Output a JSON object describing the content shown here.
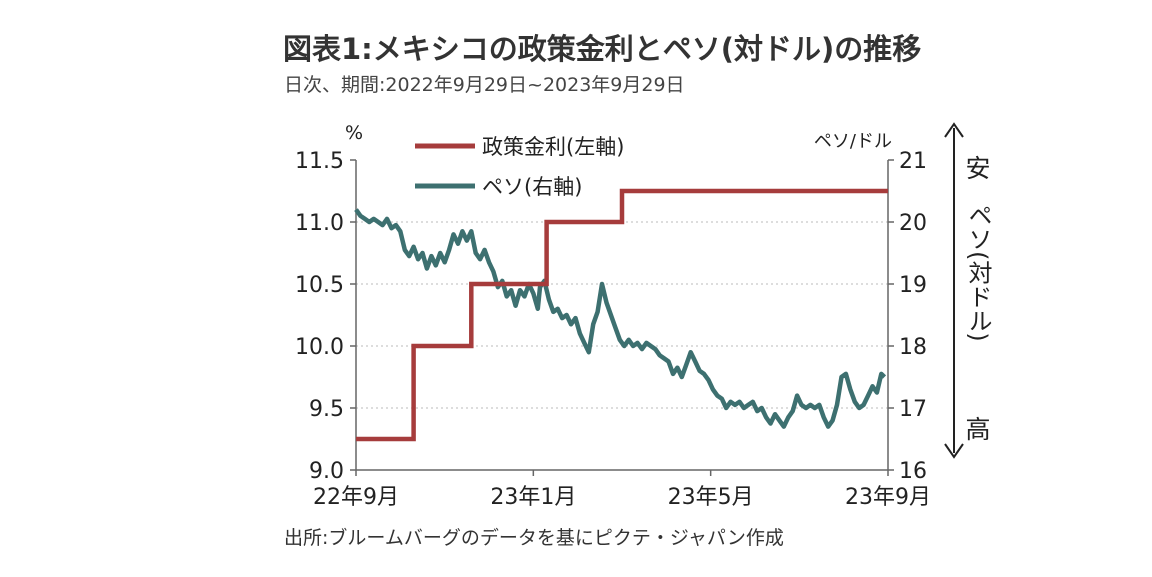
{
  "title": "図表1:メキシコの政策金利とペソ(対ドル)の推移",
  "subtitle": "日次、期間:2022年9月29日~2023年9月29日",
  "source": "出所:ブルームバーグのデータを基にピクテ・ジャパン作成",
  "chart_data": {
    "type": "line",
    "y_left_unit": "%",
    "y_right_unit": "ペソ/ドル",
    "ylim_left": [
      9.0,
      11.5
    ],
    "ylim_right": [
      16,
      21
    ],
    "left_ticks": [
      "11.5",
      "11.0",
      "10.5",
      "10.0",
      "9.5",
      "9.0"
    ],
    "right_ticks": [
      "21",
      "20",
      "19",
      "18",
      "17",
      "16"
    ],
    "x_ticks": [
      {
        "label": "22年9月",
        "month": 0
      },
      {
        "label": "23年1月",
        "month": 4
      },
      {
        "label": "23年5月",
        "month": 8
      },
      {
        "label": "23年9月",
        "month": 12
      }
    ],
    "xlim_months": [
      0,
      12
    ],
    "right_annotation": {
      "top": "安",
      "middle": "ペソ(対ドル)",
      "bottom": "高"
    },
    "colors": {
      "policy_rate": "#a63c3c",
      "peso": "#3d7070"
    },
    "series": [
      {
        "name": "政策金利(左軸)",
        "axis": "left",
        "step": true,
        "points": [
          [
            0,
            9.25
          ],
          [
            1.3,
            9.25
          ],
          [
            1.3,
            10.0
          ],
          [
            2.6,
            10.0
          ],
          [
            2.6,
            10.5
          ],
          [
            4.3,
            10.5
          ],
          [
            4.3,
            11.0
          ],
          [
            6.0,
            11.0
          ],
          [
            6.0,
            11.25
          ],
          [
            12,
            11.25
          ]
        ]
      },
      {
        "name": "ペソ(右軸)",
        "axis": "right",
        "points": [
          [
            0.0,
            20.2
          ],
          [
            0.1,
            20.1
          ],
          [
            0.2,
            20.05
          ],
          [
            0.3,
            20.0
          ],
          [
            0.4,
            20.05
          ],
          [
            0.5,
            20.0
          ],
          [
            0.6,
            19.95
          ],
          [
            0.7,
            20.05
          ],
          [
            0.8,
            19.9
          ],
          [
            0.9,
            19.95
          ],
          [
            1.0,
            19.85
          ],
          [
            1.1,
            19.55
          ],
          [
            1.2,
            19.45
          ],
          [
            1.3,
            19.6
          ],
          [
            1.4,
            19.4
          ],
          [
            1.5,
            19.5
          ],
          [
            1.6,
            19.25
          ],
          [
            1.7,
            19.45
          ],
          [
            1.8,
            19.3
          ],
          [
            1.9,
            19.5
          ],
          [
            2.0,
            19.35
          ],
          [
            2.1,
            19.55
          ],
          [
            2.2,
            19.8
          ],
          [
            2.3,
            19.65
          ],
          [
            2.4,
            19.85
          ],
          [
            2.5,
            19.7
          ],
          [
            2.6,
            19.85
          ],
          [
            2.7,
            19.5
          ],
          [
            2.8,
            19.4
          ],
          [
            2.9,
            19.55
          ],
          [
            3.0,
            19.35
          ],
          [
            3.1,
            19.2
          ],
          [
            3.2,
            18.95
          ],
          [
            3.3,
            19.05
          ],
          [
            3.4,
            18.8
          ],
          [
            3.5,
            18.9
          ],
          [
            3.6,
            18.65
          ],
          [
            3.7,
            18.9
          ],
          [
            3.8,
            18.8
          ],
          [
            3.9,
            19.0
          ],
          [
            4.0,
            18.85
          ],
          [
            4.1,
            18.6
          ],
          [
            4.15,
            18.95
          ],
          [
            4.25,
            19.05
          ],
          [
            4.35,
            18.75
          ],
          [
            4.45,
            18.55
          ],
          [
            4.55,
            18.6
          ],
          [
            4.65,
            18.45
          ],
          [
            4.75,
            18.5
          ],
          [
            4.85,
            18.35
          ],
          [
            4.95,
            18.45
          ],
          [
            5.05,
            18.2
          ],
          [
            5.15,
            18.05
          ],
          [
            5.25,
            17.9
          ],
          [
            5.35,
            18.35
          ],
          [
            5.45,
            18.55
          ],
          [
            5.55,
            19.0
          ],
          [
            5.65,
            18.7
          ],
          [
            5.75,
            18.5
          ],
          [
            5.85,
            18.3
          ],
          [
            5.95,
            18.1
          ],
          [
            6.05,
            18.0
          ],
          [
            6.15,
            18.1
          ],
          [
            6.25,
            18.0
          ],
          [
            6.35,
            18.05
          ],
          [
            6.45,
            17.95
          ],
          [
            6.55,
            18.05
          ],
          [
            6.65,
            18.0
          ],
          [
            6.75,
            17.95
          ],
          [
            6.85,
            17.85
          ],
          [
            6.95,
            17.8
          ],
          [
            7.05,
            17.75
          ],
          [
            7.15,
            17.55
          ],
          [
            7.25,
            17.65
          ],
          [
            7.35,
            17.5
          ],
          [
            7.45,
            17.7
          ],
          [
            7.55,
            17.9
          ],
          [
            7.65,
            17.75
          ],
          [
            7.75,
            17.6
          ],
          [
            7.85,
            17.55
          ],
          [
            7.95,
            17.45
          ],
          [
            8.05,
            17.3
          ],
          [
            8.15,
            17.2
          ],
          [
            8.25,
            17.15
          ],
          [
            8.35,
            17.0
          ],
          [
            8.45,
            17.1
          ],
          [
            8.55,
            17.05
          ],
          [
            8.65,
            17.1
          ],
          [
            8.75,
            17.0
          ],
          [
            8.85,
            17.05
          ],
          [
            8.95,
            17.1
          ],
          [
            9.05,
            16.95
          ],
          [
            9.15,
            17.0
          ],
          [
            9.25,
            16.85
          ],
          [
            9.35,
            16.75
          ],
          [
            9.45,
            16.9
          ],
          [
            9.55,
            16.8
          ],
          [
            9.65,
            16.7
          ],
          [
            9.75,
            16.85
          ],
          [
            9.85,
            16.95
          ],
          [
            9.95,
            17.2
          ],
          [
            10.05,
            17.05
          ],
          [
            10.15,
            17.0
          ],
          [
            10.25,
            17.05
          ],
          [
            10.35,
            17.0
          ],
          [
            10.45,
            17.05
          ],
          [
            10.55,
            16.85
          ],
          [
            10.65,
            16.7
          ],
          [
            10.75,
            16.8
          ],
          [
            10.85,
            17.05
          ],
          [
            10.95,
            17.5
          ],
          [
            11.05,
            17.55
          ],
          [
            11.15,
            17.3
          ],
          [
            11.25,
            17.1
          ],
          [
            11.35,
            17.0
          ],
          [
            11.45,
            17.05
          ],
          [
            11.55,
            17.2
          ],
          [
            11.65,
            17.35
          ],
          [
            11.75,
            17.25
          ],
          [
            11.85,
            17.55
          ],
          [
            11.92,
            17.5
          ]
        ]
      }
    ]
  }
}
